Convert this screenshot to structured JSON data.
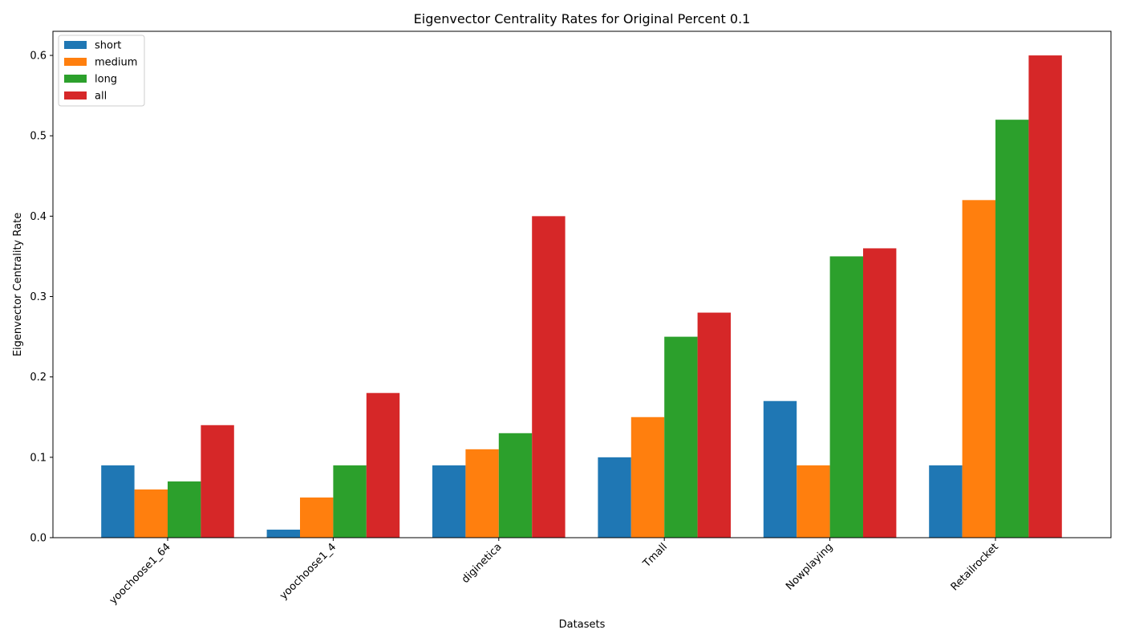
{
  "chart_data": {
    "type": "bar",
    "title": "Eigenvector Centrality Rates for Original Percent 0.1",
    "xlabel": "Datasets",
    "ylabel": "Eigenvector Centrality Rate",
    "categories": [
      "yoochoose1_64",
      "yoochoose1_4",
      "diginetica",
      "Tmall",
      "Nowplaying",
      "Retailrocket"
    ],
    "series": [
      {
        "name": "short",
        "color": "#1f77b4",
        "values": [
          0.09,
          0.01,
          0.09,
          0.1,
          0.17,
          0.09
        ]
      },
      {
        "name": "medium",
        "color": "#ff7f0e",
        "values": [
          0.06,
          0.05,
          0.11,
          0.15,
          0.09,
          0.42
        ]
      },
      {
        "name": "long",
        "color": "#2ca02c",
        "values": [
          0.07,
          0.09,
          0.13,
          0.25,
          0.35,
          0.52
        ]
      },
      {
        "name": "all",
        "color": "#d62728",
        "values": [
          0.14,
          0.18,
          0.4,
          0.28,
          0.36,
          0.6
        ]
      }
    ],
    "ylim": [
      0,
      0.63
    ],
    "yticks": [
      "0.0",
      "0.1",
      "0.2",
      "0.3",
      "0.4",
      "0.5",
      "0.6"
    ],
    "grid": false,
    "legend_position": "top-left"
  }
}
